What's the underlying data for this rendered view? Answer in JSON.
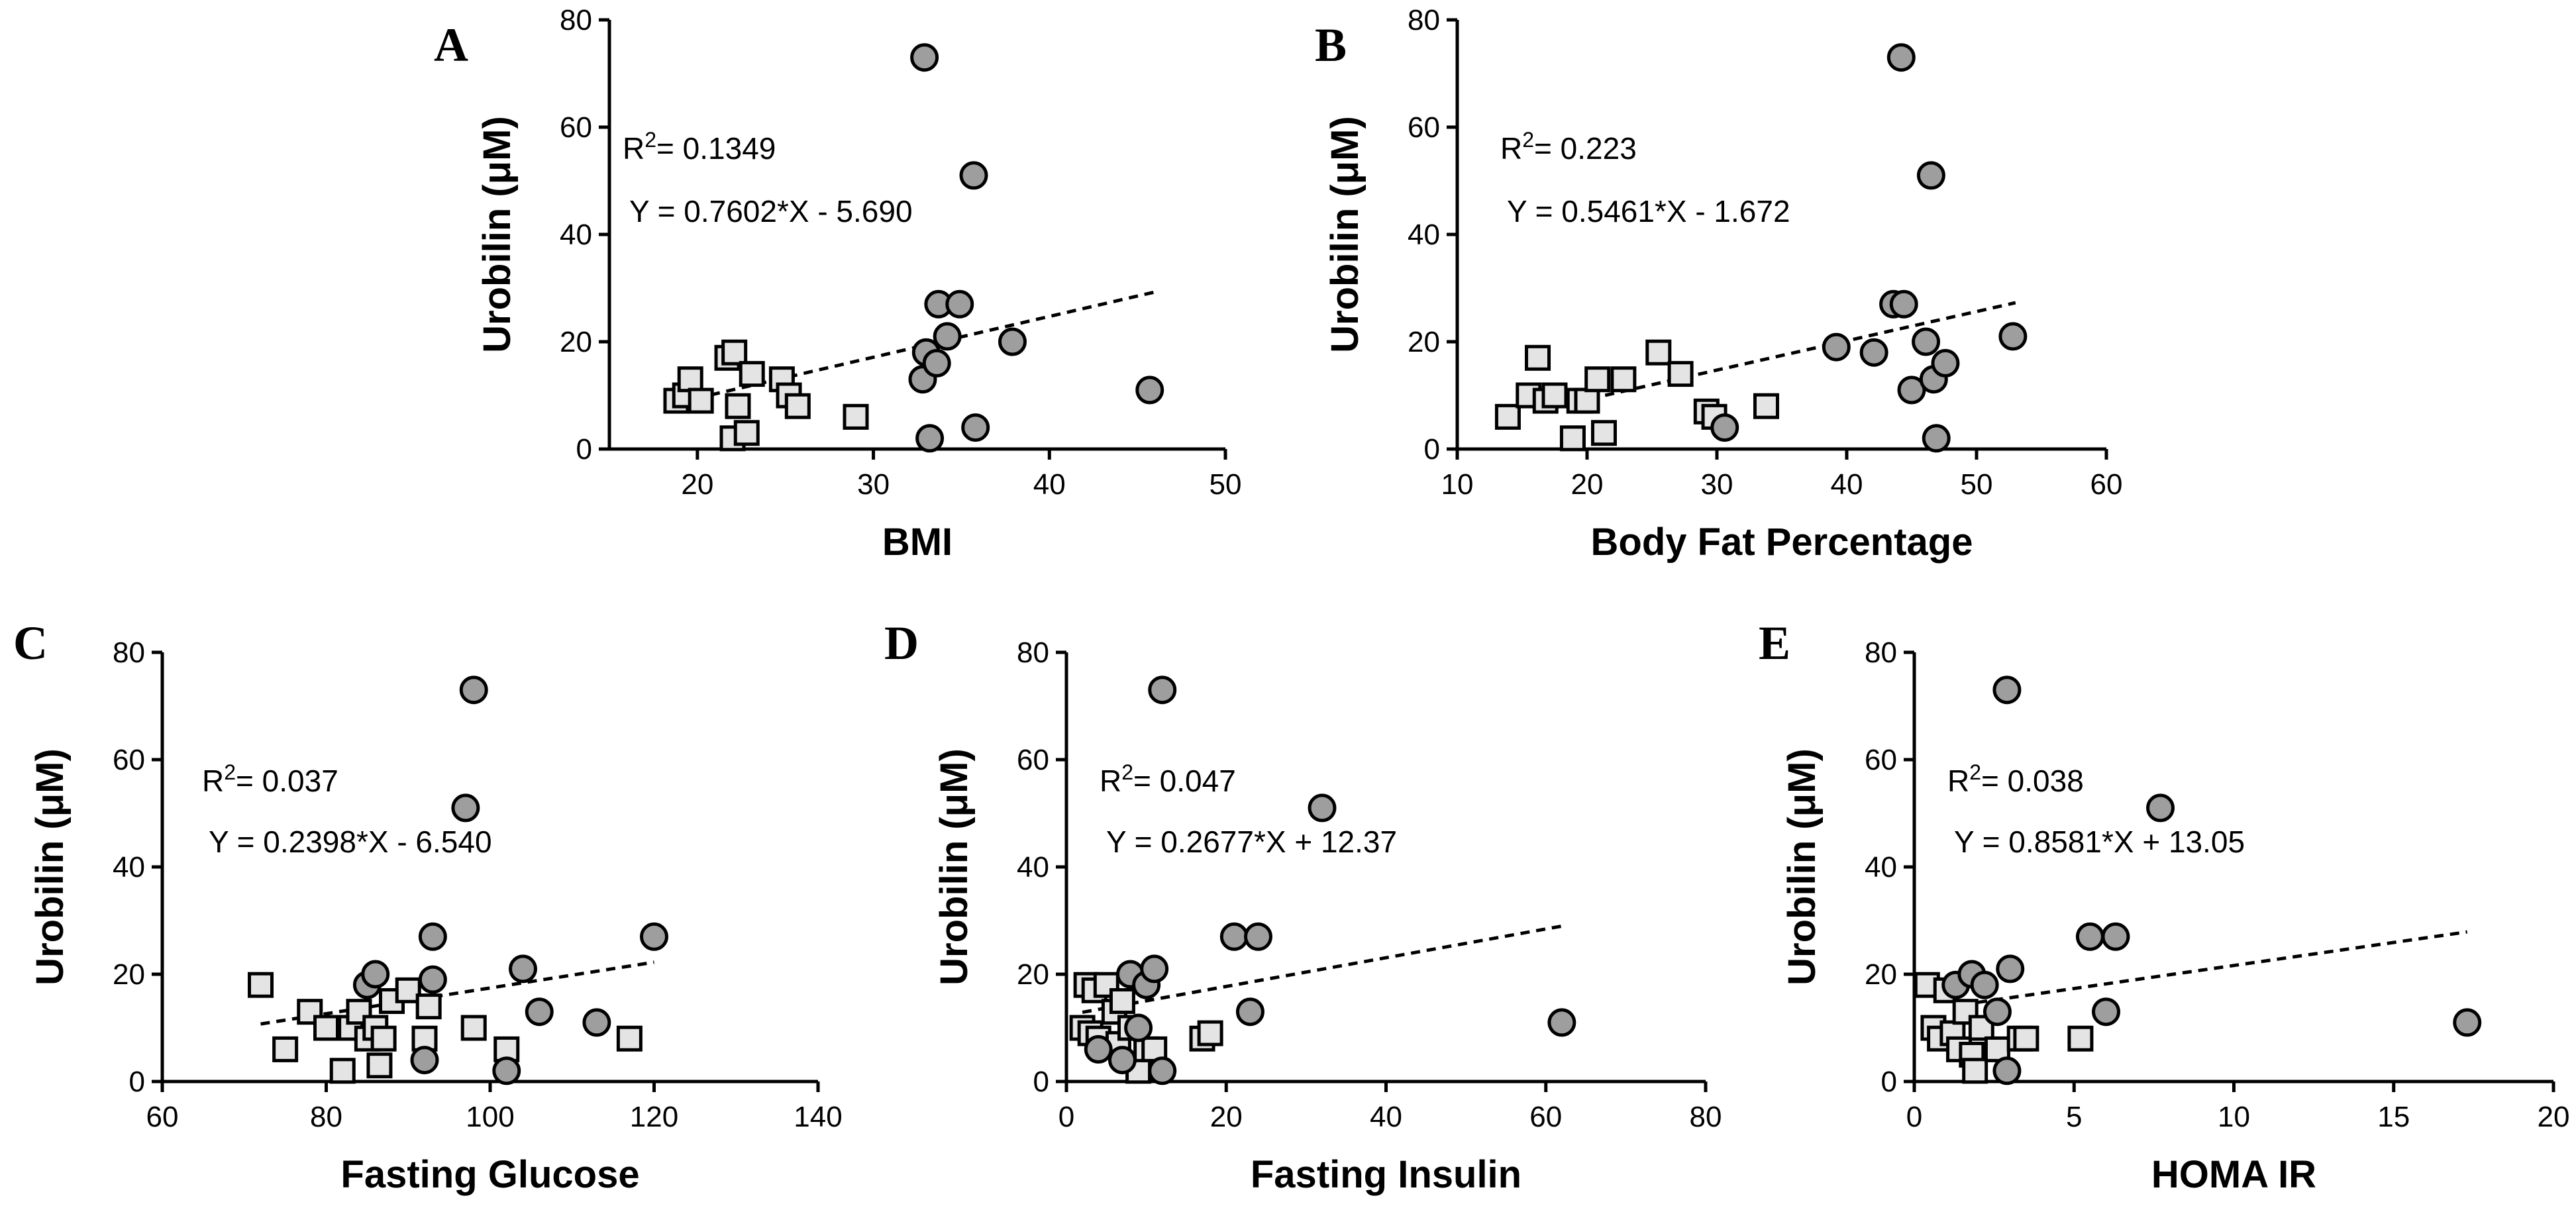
{
  "chart_data": [
    {
      "type": "scatter",
      "panel": "A",
      "xlabel": "BMI",
      "ylabel": "Urobilin (μM)",
      "xlim": [
        15,
        50
      ],
      "ylim": [
        0,
        80
      ],
      "xticks": [
        20,
        30,
        40,
        50
      ],
      "yticks": [
        0,
        20,
        40,
        60,
        80
      ],
      "r2_prefix": "R",
      "r2_sup": "2",
      "r2_value": "= 0.1349",
      "equation": "Y = 0.7602*X - 5.690",
      "fit": {
        "slope": 0.7602,
        "intercept": -5.69,
        "x_range": [
          19,
          46
        ]
      },
      "series": [
        {
          "name": "squares",
          "marker": "square",
          "points": [
            [
              18.8,
              9
            ],
            [
              19.3,
              10
            ],
            [
              19.6,
              13
            ],
            [
              20.2,
              9
            ],
            [
              21.7,
              17
            ],
            [
              22.0,
              2
            ],
            [
              22.1,
              18
            ],
            [
              22.3,
              8
            ],
            [
              22.8,
              3
            ],
            [
              23.1,
              14
            ],
            [
              24.8,
              13
            ],
            [
              25.2,
              10
            ],
            [
              25.7,
              8
            ],
            [
              29.0,
              6
            ]
          ]
        },
        {
          "name": "circles",
          "marker": "circle",
          "points": [
            [
              32.9,
              73
            ],
            [
              35.7,
              51
            ],
            [
              32.8,
              13
            ],
            [
              33.0,
              18
            ],
            [
              33.2,
              2
            ],
            [
              33.7,
              27
            ],
            [
              33.6,
              16
            ],
            [
              34.2,
              21
            ],
            [
              34.9,
              27
            ],
            [
              35.8,
              4
            ],
            [
              37.9,
              20
            ],
            [
              45.7,
              11
            ]
          ]
        }
      ]
    },
    {
      "type": "scatter",
      "panel": "B",
      "xlabel": "Body Fat Percentage",
      "ylabel": "Urobilin (μM)",
      "xlim": [
        10,
        60
      ],
      "ylim": [
        0,
        80
      ],
      "xticks": [
        10,
        20,
        30,
        40,
        50,
        60
      ],
      "yticks": [
        0,
        20,
        40,
        60,
        80
      ],
      "r2_prefix": "R",
      "r2_sup": "2",
      "r2_value": "= 0.223",
      "equation": "Y = 0.5461*X - 1.672",
      "fit": {
        "slope": 0.5461,
        "intercept": -1.672,
        "x_range": [
          19,
          53
        ]
      },
      "series": [
        {
          "name": "squares",
          "marker": "square",
          "points": [
            [
              13.9,
              6
            ],
            [
              15.5,
              10
            ],
            [
              16.2,
              17
            ],
            [
              16.8,
              9
            ],
            [
              17.5,
              10
            ],
            [
              18.9,
              2
            ],
            [
              19.4,
              9
            ],
            [
              20.0,
              9
            ],
            [
              20.8,
              13
            ],
            [
              21.3,
              3
            ],
            [
              22.8,
              13
            ],
            [
              25.5,
              18
            ],
            [
              27.2,
              14
            ],
            [
              29.2,
              7
            ],
            [
              29.8,
              6
            ],
            [
              33.8,
              8
            ]
          ]
        },
        {
          "name": "circles",
          "marker": "circle",
          "points": [
            [
              44.2,
              73
            ],
            [
              46.5,
              51
            ],
            [
              30.6,
              4
            ],
            [
              39.2,
              19
            ],
            [
              42.1,
              18
            ],
            [
              43.6,
              27
            ],
            [
              44.4,
              27
            ],
            [
              45.0,
              11
            ],
            [
              46.1,
              20
            ],
            [
              46.7,
              13
            ],
            [
              47.6,
              16
            ],
            [
              46.9,
              2
            ],
            [
              52.8,
              21
            ]
          ]
        }
      ]
    },
    {
      "type": "scatter",
      "panel": "C",
      "xlabel": "Fasting Glucose",
      "ylabel": "Urobilin (μM)",
      "xlim": [
        60,
        140
      ],
      "ylim": [
        0,
        80
      ],
      "xticks": [
        60,
        80,
        100,
        120,
        140
      ],
      "yticks": [
        0,
        20,
        40,
        60,
        80
      ],
      "r2_prefix": "R",
      "r2_sup": "2",
      "r2_value": "= 0.037",
      "equation": "Y = 0.2398*X - 6.540",
      "fit": {
        "slope": 0.2398,
        "intercept": -6.54,
        "x_range": [
          72,
          120
        ]
      },
      "series": [
        {
          "name": "squares",
          "marker": "square",
          "points": [
            [
              72,
              18
            ],
            [
              75,
              6
            ],
            [
              78,
              13
            ],
            [
              80,
              10
            ],
            [
              82,
              2
            ],
            [
              83,
              10
            ],
            [
              84,
              13
            ],
            [
              85,
              8
            ],
            [
              86,
              10
            ],
            [
              86.5,
              3
            ],
            [
              87,
              8
            ],
            [
              88,
              15
            ],
            [
              90,
              17
            ],
            [
              92,
              8
            ],
            [
              92.5,
              14
            ],
            [
              98,
              10
            ],
            [
              102,
              6
            ],
            [
              117,
              8
            ]
          ]
        },
        {
          "name": "circles",
          "marker": "circle",
          "points": [
            [
              98,
              73
            ],
            [
              97,
              51
            ],
            [
              85,
              18
            ],
            [
              86,
              20
            ],
            [
              92,
              4
            ],
            [
              93,
              27
            ],
            [
              93,
              19
            ],
            [
              102,
              2
            ],
            [
              104,
              21
            ],
            [
              106,
              13
            ],
            [
              113,
              11
            ],
            [
              120,
              27
            ]
          ]
        }
      ]
    },
    {
      "type": "scatter",
      "panel": "D",
      "xlabel": "Fasting Insulin",
      "ylabel": "Urobilin (μM)",
      "xlim": [
        0,
        80
      ],
      "ylim": [
        0,
        80
      ],
      "xticks": [
        0,
        20,
        40,
        60,
        80
      ],
      "yticks": [
        0,
        20,
        40,
        60,
        80
      ],
      "r2_prefix": "R",
      "r2_sup": "2",
      "r2_value": "= 0.047",
      "equation": "Y = 0.2677*X + 12.37",
      "fit": {
        "slope": 0.2677,
        "intercept": 12.37,
        "x_range": [
          2,
          62
        ]
      },
      "series": [
        {
          "name": "squares",
          "marker": "square",
          "points": [
            [
              2,
              10
            ],
            [
              2.5,
              18
            ],
            [
              3,
              9
            ],
            [
              3.5,
              17
            ],
            [
              4,
              8
            ],
            [
              5,
              18
            ],
            [
              6,
              13
            ],
            [
              6.5,
              7
            ],
            [
              7,
              15
            ],
            [
              8,
              10
            ],
            [
              9,
              2
            ],
            [
              10,
              6
            ],
            [
              11,
              6
            ],
            [
              17,
              8
            ],
            [
              18,
              9
            ]
          ]
        },
        {
          "name": "circles",
          "marker": "circle",
          "points": [
            [
              12,
              73
            ],
            [
              32,
              51
            ],
            [
              4,
              6
            ],
            [
              7,
              4
            ],
            [
              8,
              20
            ],
            [
              9,
              10
            ],
            [
              10,
              18
            ],
            [
              11,
              21
            ],
            [
              12,
              2
            ],
            [
              21,
              27
            ],
            [
              24,
              27
            ],
            [
              23,
              13
            ],
            [
              62,
              11
            ]
          ]
        }
      ]
    },
    {
      "type": "scatter",
      "panel": "E",
      "xlabel": "HOMA IR",
      "ylabel": "Urobilin (μM)",
      "xlim": [
        0,
        20
      ],
      "ylim": [
        0,
        80
      ],
      "xticks": [
        0,
        5,
        10,
        15,
        20
      ],
      "yticks": [
        0,
        20,
        40,
        60,
        80
      ],
      "r2_prefix": "R",
      "r2_sup": "2",
      "r2_value": "= 0.038",
      "equation": "Y = 0.8581*X + 13.05",
      "fit": {
        "slope": 0.8581,
        "intercept": 13.05,
        "x_range": [
          1.5,
          17.3
        ]
      },
      "series": [
        {
          "name": "squares",
          "marker": "square",
          "points": [
            [
              0.4,
              18
            ],
            [
              0.6,
              10
            ],
            [
              0.8,
              8
            ],
            [
              1.0,
              17
            ],
            [
              1.2,
              9
            ],
            [
              1.4,
              6
            ],
            [
              1.6,
              13
            ],
            [
              1.8,
              5
            ],
            [
              1.9,
              2
            ],
            [
              2.1,
              10
            ],
            [
              2.6,
              6
            ],
            [
              3.3,
              8
            ],
            [
              3.5,
              8
            ],
            [
              5.2,
              8
            ]
          ]
        },
        {
          "name": "circles",
          "marker": "circle",
          "points": [
            [
              2.9,
              73
            ],
            [
              7.7,
              51
            ],
            [
              1.3,
              18
            ],
            [
              1.8,
              20
            ],
            [
              2.2,
              18
            ],
            [
              2.6,
              13
            ],
            [
              3.0,
              21
            ],
            [
              2.9,
              2
            ],
            [
              5.5,
              27
            ],
            [
              6.3,
              27
            ],
            [
              6.0,
              13
            ],
            [
              17.3,
              11
            ]
          ]
        }
      ]
    }
  ]
}
